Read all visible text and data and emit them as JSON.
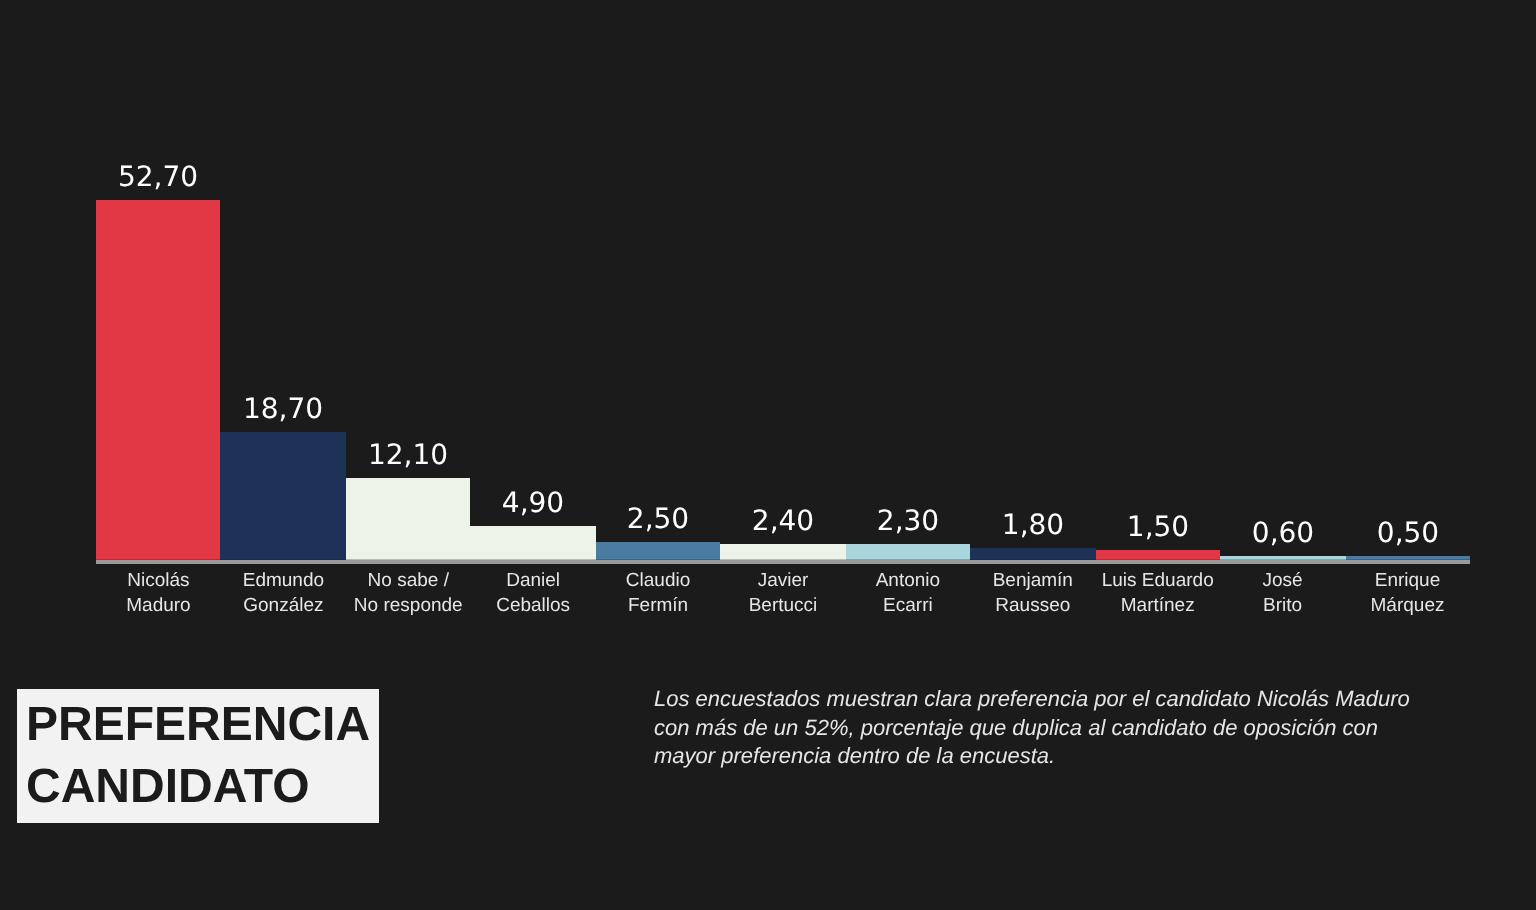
{
  "chart_data": {
    "type": "bar",
    "title": "PREFERENCIA\nCANDIDATO",
    "categories": [
      "Nicolás\nMaduro",
      "Edmundo\nGonzález",
      "No sabe /\nNo responde",
      "Daniel\nCeballos",
      "Claudio\nFermín",
      "Javier\nBertucci",
      "Antonio\nEcarri",
      "Benjamín\nRausseo",
      "Luis Eduardo\nMartínez",
      "José\nBrito",
      "Enrique\nMárquez"
    ],
    "values": [
      52.7,
      18.7,
      12.1,
      4.9,
      2.5,
      2.4,
      2.3,
      1.8,
      1.5,
      0.6,
      0.5
    ],
    "value_labels": [
      "52,70",
      "18,70",
      "12,10",
      "4,90",
      "2,50",
      "2,40",
      "2,30",
      "1,80",
      "1,50",
      "0,60",
      "0,50"
    ],
    "colors": [
      "#e23744",
      "#1c3357",
      "#eef3ea",
      "#eef3ea",
      "#4a7ba0",
      "#eef3ea",
      "#a9d6dc",
      "#1c3357",
      "#e23744",
      "#a9d6dc",
      "#4a7ba0"
    ],
    "annotations": [
      "Los encuestados muestran clara preferencia por el candidato Nicolás Maduro\ncon más de un 52%, porcentaje que duplica al candidato de oposición con\nmayor preferencia dentro de la encuesta."
    ],
    "grid": false
  }
}
